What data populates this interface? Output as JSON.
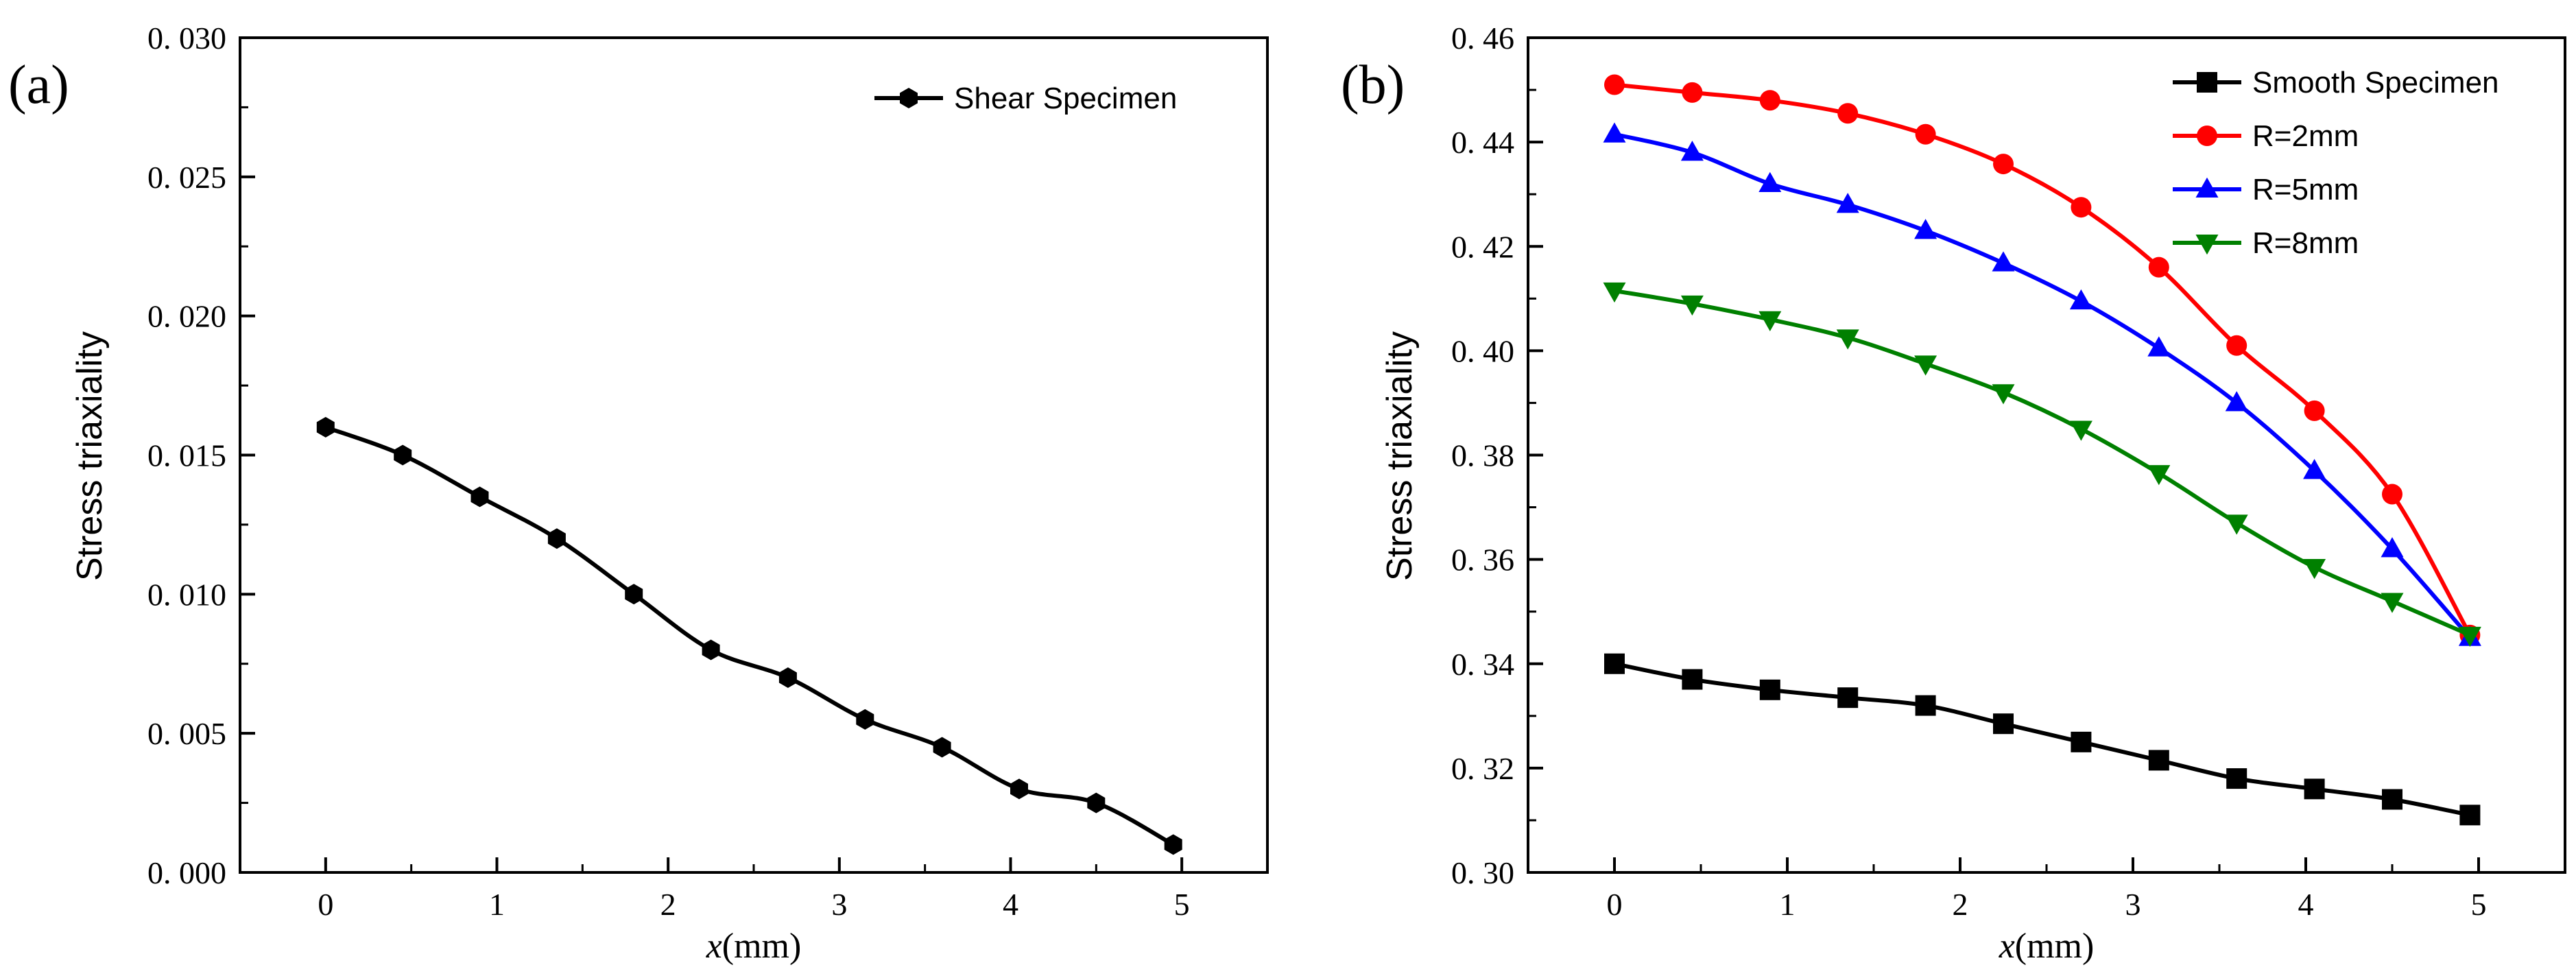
{
  "chart_data": [
    {
      "panel_label": "(a)",
      "type": "line",
      "xlabel_var": "x",
      "xlabel_unit": "(mm)",
      "ylabel": "Stress triaxiality",
      "xlim": [
        -0.5,
        5.5
      ],
      "ylim": [
        0.0,
        0.03
      ],
      "xticks": [
        0,
        1,
        2,
        3,
        4,
        5
      ],
      "xtick_labels": [
        "0",
        "1",
        "2",
        "3",
        "4",
        "5"
      ],
      "yticks": [
        0.0,
        0.005,
        0.01,
        0.015,
        0.02,
        0.025,
        0.03
      ],
      "ytick_labels": [
        "0. 000",
        "0. 005",
        "0. 010",
        "0. 015",
        "0. 020",
        "0. 025",
        "0. 030"
      ],
      "legend_position": "top-right",
      "series": [
        {
          "name": "Shear Specimen",
          "color": "#000000",
          "marker": "hexagon",
          "x": [
            0,
            0.45,
            0.9,
            1.35,
            1.8,
            2.25,
            2.7,
            3.15,
            3.6,
            4.05,
            4.5,
            4.95
          ],
          "y": [
            0.016,
            0.015,
            0.0135,
            0.012,
            0.01,
            0.008,
            0.007,
            0.0055,
            0.0045,
            0.003,
            0.0025,
            0.001
          ]
        }
      ]
    },
    {
      "panel_label": "(b)",
      "type": "line",
      "xlabel_var": "x",
      "xlabel_unit": "(mm)",
      "ylabel": "Stress triaxiality",
      "xlim": [
        -0.5,
        5.5
      ],
      "ylim": [
        0.3,
        0.46
      ],
      "xticks": [
        0,
        1,
        2,
        3,
        4,
        5
      ],
      "xtick_labels": [
        "0",
        "1",
        "2",
        "3",
        "4",
        "5"
      ],
      "yticks": [
        0.3,
        0.32,
        0.34,
        0.36,
        0.38,
        0.4,
        0.42,
        0.44,
        0.46
      ],
      "ytick_labels": [
        "0. 30",
        "0. 32",
        "0. 34",
        "0. 36",
        "0. 38",
        "0. 40",
        "0. 42",
        "0. 44",
        "0. 46"
      ],
      "legend_position": "top-right",
      "series": [
        {
          "name": "Smooth Specimen",
          "color": "#000000",
          "marker": "square",
          "x": [
            0,
            0.45,
            0.9,
            1.35,
            1.8,
            2.25,
            2.7,
            3.15,
            3.6,
            4.05,
            4.5,
            4.95
          ],
          "y": [
            0.34,
            0.337,
            0.335,
            0.3335,
            0.332,
            0.3285,
            0.325,
            0.3215,
            0.318,
            0.316,
            0.314,
            0.311
          ]
        },
        {
          "name": "R=2mm",
          "color": "#ff0000",
          "marker": "circle",
          "x": [
            0,
            0.45,
            0.9,
            1.35,
            1.8,
            2.25,
            2.7,
            3.15,
            3.6,
            4.05,
            4.5,
            4.95
          ],
          "y": [
            0.451,
            0.4495,
            0.448,
            0.4455,
            0.4415,
            0.4358,
            0.4275,
            0.416,
            0.401,
            0.3885,
            0.3725,
            0.3455
          ]
        },
        {
          "name": "R=5mm",
          "color": "#0000ff",
          "marker": "triangle-up",
          "x": [
            0,
            0.45,
            0.9,
            1.35,
            1.8,
            2.25,
            2.7,
            3.15,
            3.6,
            4.05,
            4.5,
            4.95
          ],
          "y": [
            0.4415,
            0.438,
            0.432,
            0.428,
            0.423,
            0.4168,
            0.4095,
            0.4005,
            0.39,
            0.377,
            0.362,
            0.345
          ]
        },
        {
          "name": "R=8mm",
          "color": "#008000",
          "marker": "triangle-down",
          "x": [
            0,
            0.45,
            0.9,
            1.35,
            1.8,
            2.25,
            2.7,
            3.15,
            3.6,
            4.05,
            4.5,
            4.95
          ],
          "y": [
            0.4115,
            0.409,
            0.406,
            0.4025,
            0.3975,
            0.392,
            0.385,
            0.3765,
            0.367,
            0.3585,
            0.352,
            0.3455
          ]
        }
      ]
    }
  ]
}
